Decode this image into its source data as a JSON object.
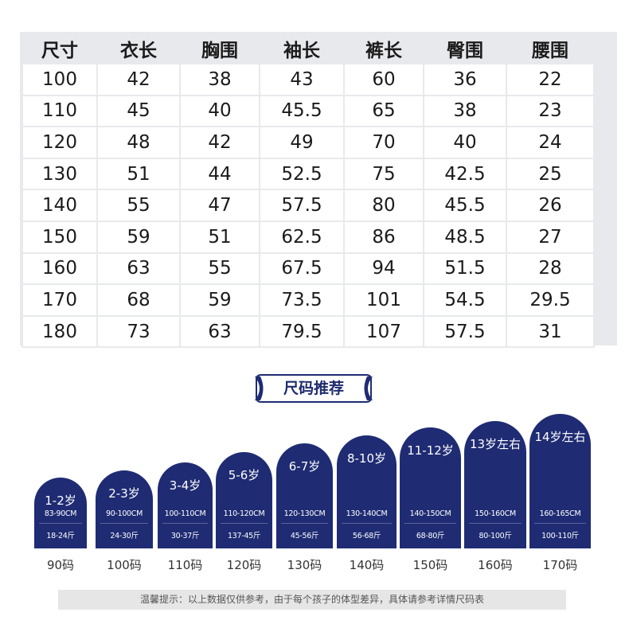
{
  "size_table": {
    "headers": [
      "尺寸",
      "衣长",
      "胸围",
      "袖长",
      "裤长",
      "臀围",
      "腰围"
    ],
    "rows": [
      [
        "100",
        "42",
        "38",
        "43",
        "60",
        "36",
        "22"
      ],
      [
        "110",
        "45",
        "40",
        "45.5",
        "65",
        "38",
        "23"
      ],
      [
        "120",
        "48",
        "42",
        "49",
        "70",
        "40",
        "24"
      ],
      [
        "130",
        "51",
        "44",
        "52.5",
        "75",
        "42.5",
        "25"
      ],
      [
        "140",
        "55",
        "47",
        "57.5",
        "80",
        "45.5",
        "26"
      ],
      [
        "150",
        "59",
        "51",
        "62.5",
        "86",
        "48.5",
        "27"
      ],
      [
        "160",
        "63",
        "55",
        "67.5",
        "94",
        "51.5",
        "28"
      ],
      [
        "170",
        "68",
        "59",
        "73.5",
        "101",
        "54.5",
        "29.5"
      ],
      [
        "180",
        "73",
        "63",
        "79.5",
        "107",
        "57.5",
        "31"
      ]
    ]
  },
  "recommend": {
    "title": "尺码推荐",
    "cards": [
      {
        "age": "1-2岁",
        "height": "83-90CM",
        "weight": "18-24斤",
        "size": "90码"
      },
      {
        "age": "2-3岁",
        "height": "90-100CM",
        "weight": "24-30斤",
        "size": "100码"
      },
      {
        "age": "3-4岁",
        "height": "100-110CM",
        "weight": "30-37斤",
        "size": "110码"
      },
      {
        "age": "5-6岁",
        "height": "110-120CM",
        "weight": "137-45斤",
        "size": "120码"
      },
      {
        "age": "6-7岁",
        "height": "120-130CM",
        "weight": "45-56斤",
        "size": "130码"
      },
      {
        "age": "8-10岁",
        "height": "130-140CM",
        "weight": "56-68斤",
        "size": "140码"
      },
      {
        "age": "11-12岁",
        "height": "140-150CM",
        "weight": "68-80斤",
        "size": "150码"
      },
      {
        "age": "13岁左右",
        "height": "150-160CM",
        "weight": "80-100斤",
        "size": "160码"
      },
      {
        "age": "14岁左右",
        "height": "160-165CM",
        "weight": "100-110斤",
        "size": "170码"
      }
    ],
    "card_color": "#1f2c73"
  },
  "notice": "温馨提示：以上数据仅供参考，由于每个孩子的体型差异，具体请参考详情尺码表"
}
